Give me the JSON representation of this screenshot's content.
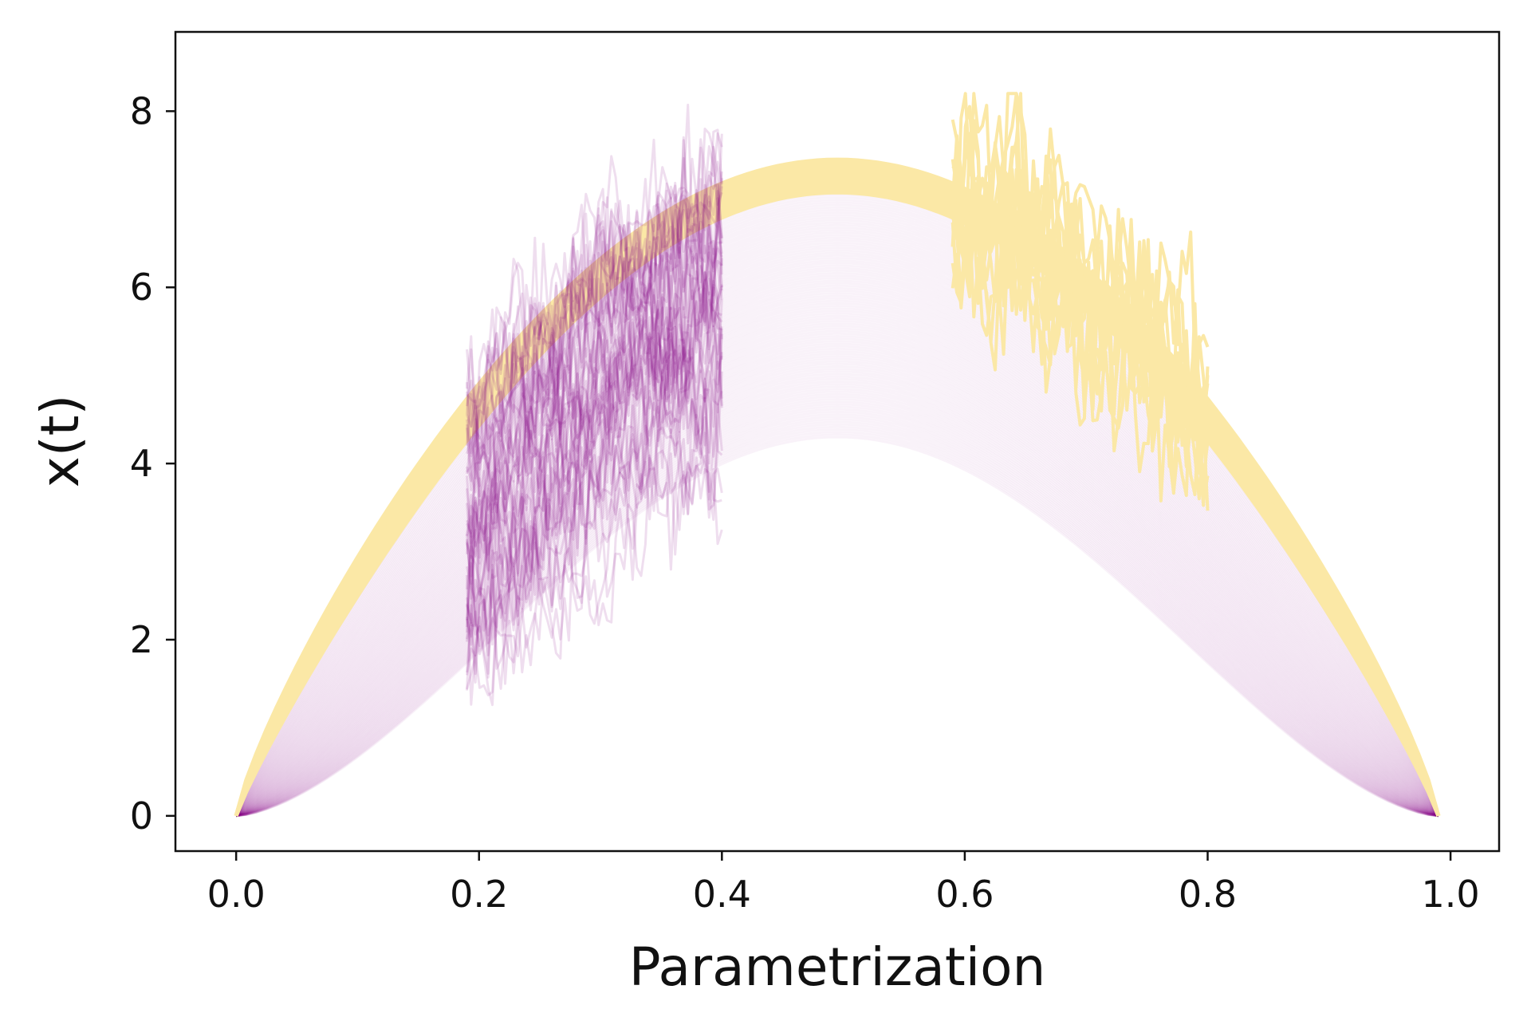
{
  "chart_data": {
    "type": "line",
    "title": "",
    "xlabel": "Parametrization",
    "ylabel": "x(t)",
    "xlim": [
      -0.05,
      1.04
    ],
    "ylim": [
      -0.4,
      8.9
    ],
    "xticks": [
      "0.0",
      "0.2",
      "0.4",
      "0.6",
      "0.8",
      "1.0"
    ],
    "xtick_values": [
      0.0,
      0.2,
      0.4,
      0.6,
      0.8,
      1.0
    ],
    "yticks": [
      "0",
      "2",
      "4",
      "6",
      "8"
    ],
    "ytick_values": [
      0,
      2,
      4,
      6,
      8
    ],
    "grid": false,
    "curve_family": {
      "t_range": [
        0.0,
        0.99
      ],
      "lower_curve_peak": 4.3,
      "upper_curve_peak": 7.45,
      "yellow_band_lower_peak": 7.05,
      "peak_t": 0.5,
      "color_purple": "#800080",
      "color_yellow": "#fbe8a6"
    },
    "noisy_segments": [
      {
        "color": "#800080",
        "t_range": [
          0.19,
          0.4
        ],
        "y_range": [
          0.85,
          8.45
        ],
        "style": "translucent"
      },
      {
        "color": "#fbe8a6",
        "t_range": [
          0.59,
          0.8
        ],
        "y_range": [
          3.3,
          8.2
        ],
        "style": "opaque"
      }
    ]
  }
}
